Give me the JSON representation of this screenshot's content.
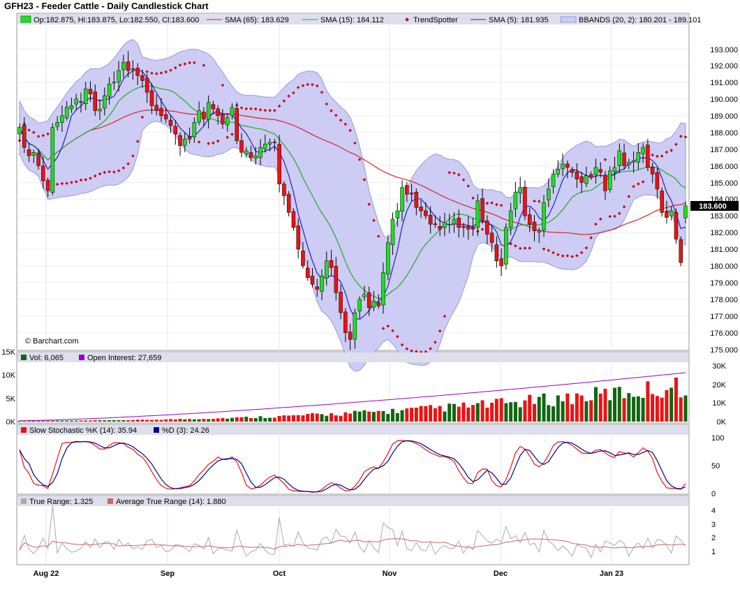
{
  "title": "GFH23 - Feeder Cattle - Daily Candlestick Chart",
  "watermark": "© Barchart.com",
  "last_price": "183.600",
  "price_legend": {
    "ohlc": "Op:182.875, Hi:183.875, Lo:182.550, Cl:183.600",
    "sma65": "SMA (65): 183.629",
    "sma15": "SMA (15): 184.112",
    "trendspotter": "TrendSpotter",
    "sma5": "SMA (5): 181.935",
    "bbands": "BBANDS (20, 2): 180.201 - 189.101"
  },
  "volume_legend": {
    "vol": "Vol: 6,065",
    "oi": "Open Interest: 27,659"
  },
  "stoch_legend": {
    "k": "Slow Stochastic %K (14): 35.94",
    "d": "%D (3): 24.26"
  },
  "tr_legend": {
    "tr": "True Range: 1.325",
    "atr": "Average True Range (14): 1.880"
  },
  "x_labels": [
    "Aug 22",
    "Sep",
    "Oct",
    "Nov",
    "Dec",
    "Jan 23"
  ],
  "price_ticks": [
    "193.000",
    "192.000",
    "191.000",
    "190.000",
    "189.000",
    "188.000",
    "187.000",
    "186.000",
    "185.000",
    "184.000",
    "183.000",
    "182.000",
    "181.000",
    "180.000",
    "179.000",
    "178.000",
    "177.000",
    "176.000",
    "175.000"
  ],
  "vol_ticks_left": [
    "15K",
    "10K",
    "5K",
    "0K"
  ],
  "vol_ticks_right": [
    "30K",
    "20K",
    "10K",
    "0K"
  ],
  "stoch_ticks": [
    "100",
    "50",
    "0"
  ],
  "tr_ticks": [
    "4",
    "3",
    "2",
    "1"
  ],
  "colors": {
    "up": "#22dd22",
    "down": "#ee1111",
    "sma65": "#dd2222",
    "sma15": "#22aa22",
    "sma5": "#2222bb",
    "bband_fill": "#ccccf4",
    "bband_line": "#9999dd",
    "trend": "#cc0000",
    "vol_up": "#116611",
    "vol_down": "#ee1111",
    "oi": "#9900cc",
    "k": "#ee1111",
    "d": "#000088",
    "tr": "#aaaaaa",
    "atr": "#cc6666",
    "legend_bg": "#dde0ec"
  },
  "chart_data": {
    "type": "candlestick",
    "panels": [
      "price",
      "volume",
      "stochastic",
      "true_range"
    ],
    "price_range": [
      175,
      193.5
    ],
    "x_date_anchors": {
      "Aug 22": 9,
      "Sep": 52,
      "Oct": 94,
      "Nov": 136,
      "Dec": 178,
      "Jan 23": 218
    },
    "last": {
      "open": 182.875,
      "high": 183.875,
      "low": 182.55,
      "close": 183.6,
      "sma65": 183.629,
      "sma15": 184.112,
      "sma5": 181.935,
      "bb_lower": 180.201,
      "bb_upper": 189.101,
      "volume": 6065,
      "open_interest": 27659,
      "k": 35.94,
      "d": 24.26,
      "true_range": 1.325,
      "atr": 1.88
    },
    "close_series": [
      188.3,
      187.1,
      186.6,
      186.8,
      186.0,
      185.1,
      184.5,
      188.3,
      188.6,
      189.0,
      189.5,
      189.6,
      190.0,
      189.8,
      190.6,
      190.3,
      189.3,
      189.4,
      190.2,
      190.9,
      191.0,
      191.7,
      192.2,
      191.7,
      191.8,
      191.4,
      191.1,
      190.4,
      189.6,
      189.3,
      189.0,
      188.8,
      188.4,
      187.9,
      187.2,
      187.6,
      187.6,
      188.6,
      189.3,
      188.8,
      189.8,
      189.4,
      189.0,
      188.5,
      188.9,
      189.5,
      187.5,
      186.8,
      186.9,
      186.5,
      186.6,
      187.1,
      187.3,
      187.4,
      187.4,
      184.9,
      184.2,
      183.2,
      182.3,
      181.0,
      180.0,
      179.3,
      178.9,
      178.6,
      179.4,
      180.3,
      179.9,
      178.4,
      177.2,
      176.0,
      175.6,
      177.2,
      178.0,
      178.3,
      177.5,
      177.9,
      177.6,
      179.6,
      181.4,
      182.8,
      183.3,
      184.7,
      184.3,
      184.3,
      183.5,
      183.3,
      183.0,
      182.5,
      182.5,
      182.2,
      182.6,
      182.5,
      182.8,
      182.3,
      182.3,
      182.2,
      182.2,
      183.9,
      182.7,
      181.9,
      181.4,
      180.3,
      180.0,
      182.3,
      183.3,
      184.4,
      184.7,
      183.0,
      182.5,
      182.1,
      182.1,
      183.8,
      184.6,
      185.5,
      185.8,
      186.1,
      185.9,
      185.6,
      185.2,
      185.0,
      185.4,
      185.3,
      185.9,
      185.6,
      184.5,
      185.7,
      185.9,
      186.9,
      186.0,
      186.2,
      186.3,
      186.8,
      187.1,
      185.9,
      185.5,
      184.6,
      183.2,
      182.9,
      183.3,
      181.6,
      180.2,
      183.6
    ],
    "volume_note": "volume bars rise from ~1K in Aug to ~25K in Jan; open interest rises from ~1K to ~27.7K",
    "stochastic_range": [
      0,
      100
    ],
    "true_range_range": [
      0,
      4.5
    ]
  }
}
